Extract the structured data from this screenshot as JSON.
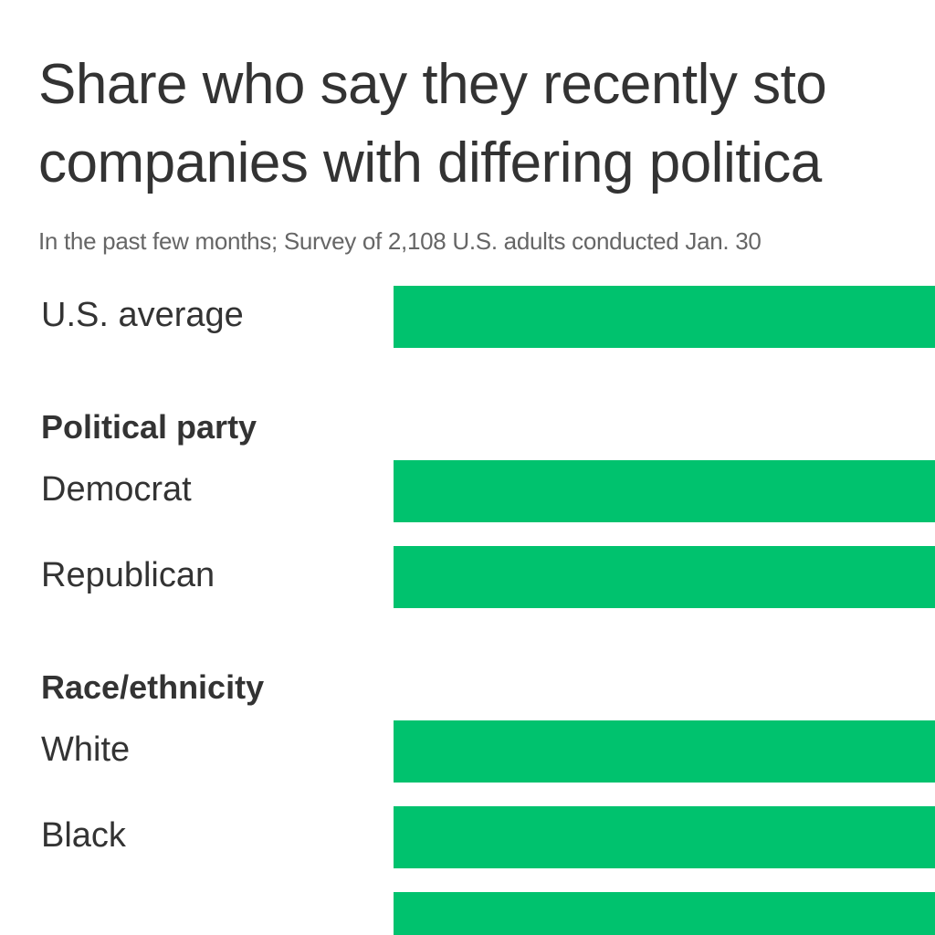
{
  "colors": {
    "bar": "#00c26e",
    "text": "#333333",
    "subtext": "#666666"
  },
  "chart_data": {
    "type": "bar",
    "orientation": "horizontal",
    "title": "Share who say they recently stopped buying from companies with differing political views",
    "title_lines": [
      "Share who say they recently sto",
      "companies with differing politica"
    ],
    "subtitle": "In the past few months; Survey of 2,108 U.S. adults conducted Jan. 30",
    "rows": [
      {
        "kind": "item",
        "label": "U.S. average"
      },
      {
        "kind": "group",
        "label": "Political party"
      },
      {
        "kind": "item",
        "label": "Democrat"
      },
      {
        "kind": "item",
        "label": "Republican"
      },
      {
        "kind": "group",
        "label": "Race/ethnicity"
      },
      {
        "kind": "item",
        "label": "White"
      },
      {
        "kind": "item",
        "label": "Black"
      },
      {
        "kind": "item",
        "label": ""
      }
    ]
  }
}
